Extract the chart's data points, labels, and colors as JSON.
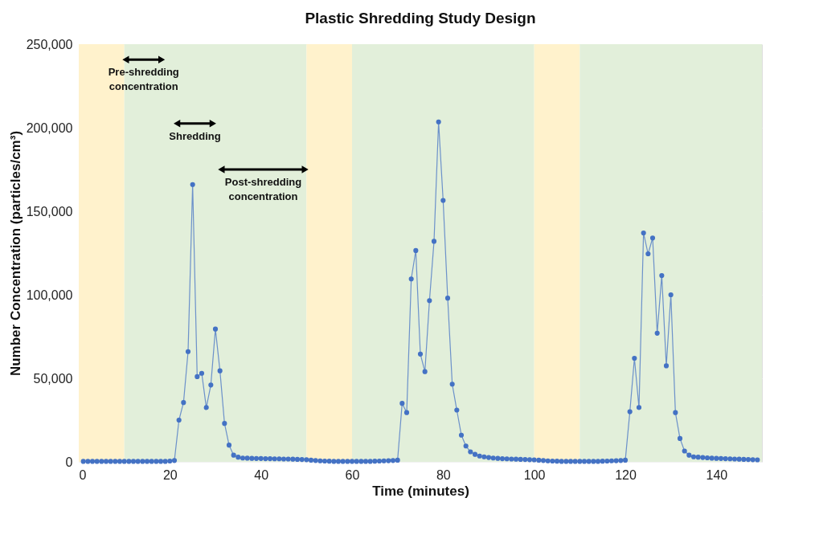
{
  "chart_data": {
    "type": "line",
    "title": "Plastic Shredding Study Design",
    "xlabel": "Time (minutes)",
    "ylabel": "Number Concentration (particles/cm³)",
    "x": [
      1,
      2,
      3,
      4,
      5,
      6,
      7,
      8,
      9,
      10,
      11,
      12,
      13,
      14,
      15,
      16,
      17,
      18,
      19,
      20,
      21,
      22,
      23,
      24,
      25,
      26,
      27,
      28,
      29,
      30,
      31,
      32,
      33,
      34,
      35,
      36,
      37,
      38,
      39,
      40,
      41,
      42,
      43,
      44,
      45,
      46,
      47,
      48,
      49,
      50,
      51,
      52,
      53,
      54,
      55,
      56,
      57,
      58,
      59,
      60,
      61,
      62,
      63,
      64,
      65,
      66,
      67,
      68,
      69,
      70,
      71,
      72,
      73,
      74,
      75,
      76,
      77,
      78,
      79,
      80,
      81,
      82,
      83,
      84,
      85,
      86,
      87,
      88,
      89,
      90,
      91,
      92,
      93,
      94,
      95,
      96,
      97,
      98,
      99,
      100,
      101,
      102,
      103,
      104,
      105,
      106,
      107,
      108,
      109,
      110,
      111,
      112,
      113,
      114,
      115,
      116,
      117,
      118,
      119,
      120,
      121,
      122,
      123,
      124,
      125,
      126,
      127,
      128,
      129,
      130,
      131,
      132,
      133,
      134,
      135,
      136,
      137,
      138,
      139,
      140,
      141,
      142,
      143,
      144,
      145,
      146,
      147,
      148,
      149
    ],
    "series": [
      {
        "color": "#4472c4",
        "values": [
          300,
          300,
          300,
          300,
          300,
          300,
          300,
          300,
          300,
          300,
          300,
          300,
          300,
          300,
          300,
          300,
          300,
          300,
          300,
          500,
          800,
          25000,
          35500,
          66000,
          166000,
          51000,
          53000,
          32500,
          46000,
          79500,
          54500,
          23000,
          10000,
          4000,
          2800,
          2300,
          2200,
          2100,
          2000,
          2000,
          1900,
          1900,
          1800,
          1800,
          1700,
          1700,
          1600,
          1500,
          1400,
          1300,
          1000,
          800,
          600,
          500,
          400,
          300,
          300,
          300,
          300,
          300,
          300,
          300,
          300,
          300,
          400,
          500,
          600,
          700,
          800,
          1000,
          35000,
          29500,
          109500,
          126500,
          64500,
          54000,
          96500,
          132000,
          203500,
          156500,
          98000,
          46500,
          31000,
          16000,
          9500,
          6000,
          4500,
          3500,
          3000,
          2600,
          2300,
          2100,
          1900,
          1800,
          1700,
          1600,
          1500,
          1400,
          1300,
          1200,
          1000,
          800,
          600,
          500,
          400,
          300,
          300,
          300,
          300,
          300,
          300,
          300,
          300,
          300,
          400,
          500,
          600,
          700,
          800,
          1000,
          30000,
          62000,
          32500,
          137000,
          124500,
          134000,
          77000,
          111500,
          57500,
          100000,
          29500,
          14000,
          6500,
          4000,
          3000,
          2800,
          2600,
          2400,
          2200,
          2100,
          2000,
          1900,
          1800,
          1700,
          1600,
          1500,
          1400,
          1300,
          1200
        ]
      }
    ],
    "xlim": [
      0,
      150
    ],
    "xticks": [
      0,
      20,
      40,
      60,
      80,
      100,
      120,
      140
    ],
    "ylim": [
      0,
      250000
    ],
    "yticks": [
      0,
      {
        "value": 50000,
        "label": "50,000"
      },
      {
        "value": 100000,
        "label": "100,000"
      },
      {
        "value": 150000,
        "label": "150,000"
      },
      {
        "value": 200000,
        "label": "200,000"
      },
      {
        "value": 250000,
        "label": "250,000"
      }
    ],
    "bands": [
      {
        "axis": "x",
        "from": 0,
        "to": 10,
        "color": "#fff2cc"
      },
      {
        "axis": "x",
        "from": 10,
        "to": 50,
        "color": "#e2efda"
      },
      {
        "axis": "x",
        "from": 50,
        "to": 60,
        "color": "#fff2cc"
      },
      {
        "axis": "x",
        "from": 60,
        "to": 100,
        "color": "#e2efda"
      },
      {
        "axis": "x",
        "from": 100,
        "to": 110,
        "color": "#fff2cc"
      },
      {
        "axis": "x",
        "from": 110,
        "to": 150,
        "color": "#e2efda"
      }
    ],
    "annotations": [
      "Pre-shredding\nconcentration",
      "Shredding",
      "Post-shredding\nconcentration"
    ],
    "grid": true,
    "marker": "circle",
    "line_style": "solid"
  }
}
